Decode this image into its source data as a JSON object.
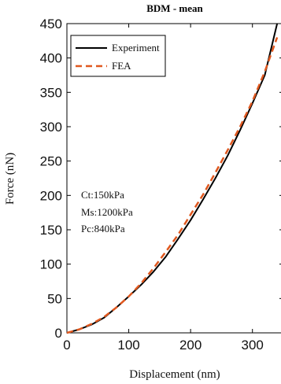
{
  "chart_data": {
    "type": "line",
    "title": "BDM - mean",
    "xlabel": "Displacement (nm)",
    "ylabel": "Force (nN)",
    "xlim": [
      0,
      350
    ],
    "ylim": [
      0,
      450
    ],
    "xticks": [
      0,
      100,
      200,
      300
    ],
    "yticks": [
      0,
      50,
      100,
      150,
      200,
      250,
      300,
      350,
      400,
      450
    ],
    "grid": false,
    "legend_position": "top-left",
    "series": [
      {
        "name": "Experiment",
        "color": "#000000",
        "style": "solid",
        "x": [
          0,
          20,
          40,
          60,
          80,
          100,
          120,
          140,
          160,
          180,
          200,
          220,
          240,
          260,
          280,
          300,
          320,
          340
        ],
        "y": [
          0,
          5,
          12,
          22,
          37,
          53,
          70,
          89,
          111,
          137,
          164,
          194,
          225,
          258,
          295,
          334,
          375,
          450
        ]
      },
      {
        "name": "FEA",
        "color": "#E0581F",
        "style": "dashed",
        "x": [
          0,
          20,
          40,
          60,
          80,
          100,
          120,
          140,
          160,
          180,
          200,
          220,
          240,
          260,
          280,
          300,
          320,
          340
        ],
        "y": [
          0,
          5,
          13,
          23,
          37,
          53,
          72,
          94,
          118,
          143,
          172,
          201,
          233,
          266,
          300,
          337,
          380,
          430
        ]
      }
    ],
    "annotations": [
      "Ct:150kPa",
      "Ms:1200kPa",
      "Pc:840kPa"
    ]
  }
}
